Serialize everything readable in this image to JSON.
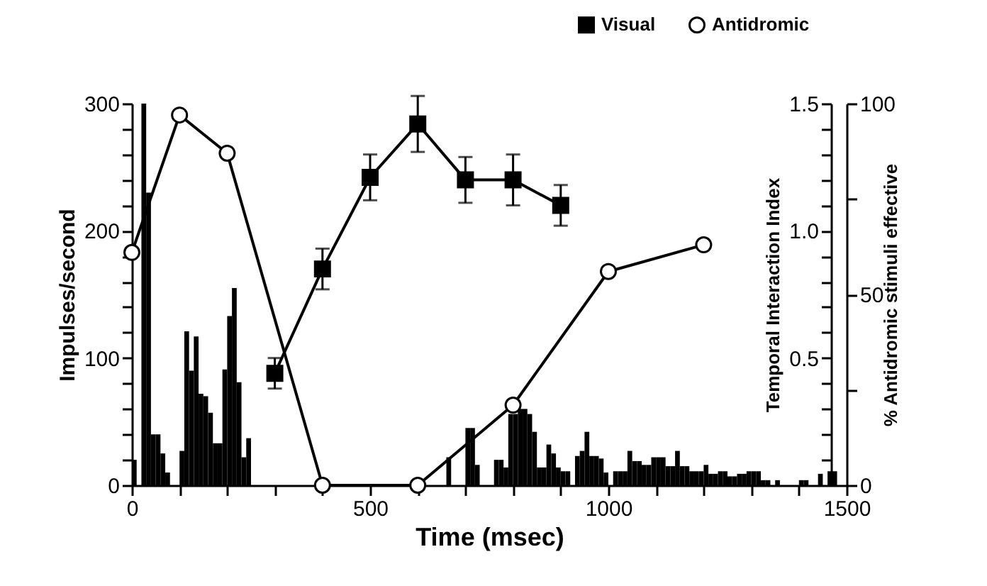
{
  "chart_data": {
    "type": "histogram",
    "xlabel": "Time (msec)",
    "ylabel": "Impulses/second",
    "y2label": "Temporal Interaction Index",
    "y3label": "% Antidromic stimuli effective",
    "xlim": [
      0,
      1500
    ],
    "xticks": [
      0,
      {
        "value": 100,
        "label": null
      },
      {
        "value": 200,
        "label": null
      },
      {
        "value": 300,
        "label": null
      },
      {
        "value": 400,
        "label": null
      },
      500,
      {
        "value": 600,
        "label": null
      },
      {
        "value": 700,
        "label": null
      },
      {
        "value": 800,
        "label": null
      },
      {
        "value": 900,
        "label": null
      },
      1000,
      {
        "value": 1100,
        "label": null
      },
      {
        "value": 1200,
        "label": null
      },
      {
        "value": 1300,
        "label": null
      },
      {
        "value": 1400,
        "label": null
      },
      1500
    ],
    "ylim": [
      0,
      300
    ],
    "yticks": [
      0,
      {
        "value": 20,
        "label": null
      },
      {
        "value": 40,
        "label": null
      },
      {
        "value": 60,
        "label": null
      },
      {
        "value": 80,
        "label": null
      },
      100,
      {
        "value": 120,
        "label": null
      },
      {
        "value": 140,
        "label": null
      },
      {
        "value": 160,
        "label": null
      },
      {
        "value": 180,
        "label": null
      },
      200,
      {
        "value": 220,
        "label": null
      },
      {
        "value": 240,
        "label": null
      },
      {
        "value": 260,
        "label": null
      },
      {
        "value": 280,
        "label": null
      },
      300
    ],
    "y2lim": [
      0,
      1.5
    ],
    "y2ticks": [
      {
        "value": 0.1,
        "label": null
      },
      {
        "value": 0.2,
        "label": null
      },
      {
        "value": 0.3,
        "label": null
      },
      {
        "value": 0.4,
        "label": null
      },
      0.5,
      {
        "value": 0.6,
        "label": null
      },
      {
        "value": 0.7,
        "label": null
      },
      {
        "value": 0.8,
        "label": null
      },
      {
        "value": 0.9,
        "label": null
      },
      {
        "value": 1,
        "label": "1.0"
      },
      {
        "value": 1.1,
        "label": null
      },
      {
        "value": 1.2,
        "label": null
      },
      {
        "value": 1.3,
        "label": null
      },
      {
        "value": 1.4,
        "label": null
      },
      1.5
    ],
    "y3lim": [
      0,
      100
    ],
    "y3ticks": [
      0,
      {
        "value": 25,
        "label": null
      },
      50,
      {
        "value": 75,
        "label": null
      },
      100
    ],
    "legend": "top right",
    "grid": false,
    "series": [
      {
        "color": "#000000",
        "bins": [
          0,
          10,
          20,
          30,
          40,
          50,
          60,
          70,
          80,
          90,
          100,
          110,
          120,
          130,
          140,
          150,
          160,
          170,
          180,
          190,
          200,
          210,
          220,
          230,
          240,
          250,
          260,
          270,
          280,
          290,
          300,
          310,
          320,
          330,
          340,
          350,
          360,
          370,
          380,
          390,
          400,
          410,
          420,
          430,
          440,
          450,
          460,
          470,
          480,
          490,
          500,
          510,
          520,
          530,
          540,
          550,
          560,
          570,
          580,
          590,
          600,
          610,
          620,
          630,
          640,
          650,
          660,
          670,
          680,
          690,
          700,
          710,
          720,
          730,
          740,
          750,
          760,
          770,
          780,
          790,
          800,
          810,
          820,
          830,
          840,
          850,
          860,
          870,
          880,
          890,
          900,
          910,
          920,
          930,
          940,
          950,
          960,
          970,
          980,
          990,
          1000,
          1010,
          1020,
          1030,
          1040,
          1050,
          1060,
          1070,
          1080,
          1090,
          1100,
          1110,
          1120,
          1130,
          1140,
          1150,
          1160,
          1170,
          1180,
          1190,
          1200,
          1210,
          1220,
          1230,
          1240,
          1250,
          1260,
          1270,
          1280,
          1290,
          1300,
          1310,
          1320,
          1330,
          1340,
          1350,
          1360,
          1370,
          1380,
          1390,
          1400,
          1410,
          1420,
          1430,
          1440,
          1450,
          1460,
          1470,
          1480,
          1490,
          1500
        ],
        "values": [
          20,
          0,
          300,
          230,
          40,
          40,
          25,
          10,
          0,
          0,
          27,
          121,
          90,
          117,
          72,
          70,
          57,
          33,
          33,
          91,
          133,
          155,
          81,
          22,
          37,
          0,
          0,
          0,
          0,
          0,
          0,
          0,
          0,
          0,
          0,
          0,
          0,
          0,
          0,
          0,
          0,
          0,
          0,
          0,
          0,
          0,
          0,
          0,
          0,
          0,
          0,
          0,
          0,
          0,
          0,
          0,
          0,
          0,
          0,
          0,
          0,
          0,
          0,
          0,
          0,
          0,
          22,
          0,
          0,
          0,
          45,
          45,
          16,
          0,
          0,
          0,
          20,
          20,
          14,
          56,
          56,
          60,
          60,
          56,
          42,
          14,
          14,
          32,
          25,
          14,
          11,
          11,
          0,
          23,
          27,
          42,
          23,
          23,
          21,
          10,
          0,
          11,
          11,
          11,
          27,
          19,
          19,
          16,
          16,
          22,
          22,
          22,
          15,
          15,
          27,
          15,
          15,
          11,
          11,
          11,
          16,
          9,
          9,
          11,
          11,
          7,
          7,
          9,
          9,
          11,
          11,
          11,
          4,
          4,
          0,
          4,
          0,
          0,
          0,
          0,
          4,
          4,
          0,
          0,
          9,
          0,
          11,
          11,
          0,
          0
        ]
      },
      {
        "type": "line",
        "name": "Visual",
        "axis": "y2",
        "color": "#000000",
        "marker": "square",
        "x": [
          300,
          400,
          500,
          600,
          700,
          800,
          900
        ],
        "values": [
          0.44,
          0.85,
          1.21,
          1.42,
          1.2,
          1.2,
          1.1
        ],
        "errors": [
          0.06,
          0.08,
          0.09,
          0.11,
          0.09,
          0.1,
          0.08
        ]
      },
      {
        "type": "line",
        "name": "Antidromic",
        "axis": "y3",
        "color": "#000000",
        "marker": "circle",
        "x": [
          0,
          100,
          200,
          400,
          600,
          800,
          1000,
          1200
        ],
        "values": [
          61,
          97,
          87,
          0,
          0,
          21,
          56,
          63
        ]
      }
    ]
  }
}
